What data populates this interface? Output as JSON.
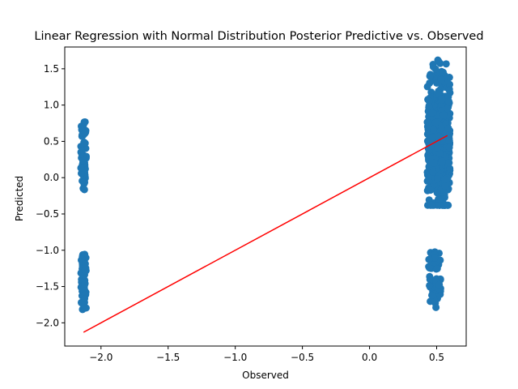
{
  "chart_data": {
    "type": "scatter",
    "title": "Linear Regression with Normal Distribution Posterior Predictive vs. Observed",
    "xlabel": "Observed",
    "ylabel": "Predicted",
    "xlim": [
      -2.27,
      0.72
    ],
    "ylim": [
      -2.32,
      1.8
    ],
    "xticks": [
      -2.0,
      -1.5,
      -1.0,
      -0.5,
      0.0,
      0.5
    ],
    "xtick_labels": [
      "−2.0",
      "−1.5",
      "−1.0",
      "−0.5",
      "0.0",
      "0.5"
    ],
    "yticks": [
      -2.0,
      -1.5,
      -1.0,
      -0.5,
      0.0,
      0.5,
      1.0,
      1.5
    ],
    "ytick_labels": [
      "−2.0",
      "−1.5",
      "−1.0",
      "−0.5",
      "0.0",
      "0.5",
      "1.0",
      "1.5"
    ],
    "grid": false,
    "scatter_color": "#1f77b4",
    "line_color": "#ff0000",
    "clusters": [
      {
        "x_range": [
          -2.15,
          -2.11
        ],
        "y_range": [
          -0.17,
          0.77
        ]
      },
      {
        "x_range": [
          -2.15,
          -2.11
        ],
        "y_range": [
          -1.82,
          -1.05
        ]
      },
      {
        "x_range": [
          0.43,
          0.6
        ],
        "y_range": [
          -0.38,
          1.62
        ]
      },
      {
        "x_range": [
          0.44,
          0.53
        ],
        "y_range": [
          -1.79,
          -1.02
        ]
      }
    ],
    "fit_line": {
      "x": [
        -2.13,
        0.58
      ],
      "y": [
        -2.13,
        0.58
      ]
    }
  }
}
